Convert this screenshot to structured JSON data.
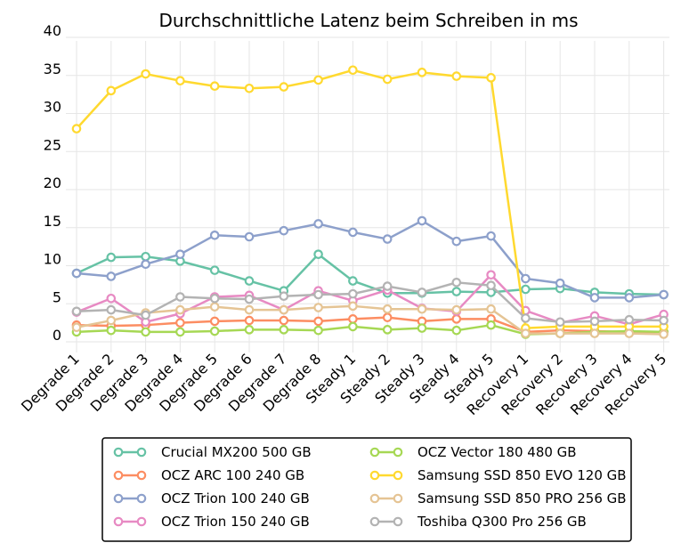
{
  "chart_data": {
    "type": "line",
    "title": "Durchschnittliche Latenz beim Schreiben in ms",
    "xlabel": "",
    "ylabel": "",
    "ylim": [
      0,
      40
    ],
    "yticks": [
      0,
      5,
      10,
      15,
      20,
      25,
      30,
      35,
      40
    ],
    "grid": true,
    "legend_position": "bottom",
    "categories": [
      "Degrade 1",
      "Degrade 2",
      "Degrade 3",
      "Degrade 4",
      "Degrade 5",
      "Degrade 6",
      "Degrade 7",
      "Degrade 8",
      "Steady 1",
      "Steady 2",
      "Steady 3",
      "Steady 4",
      "Steady 5",
      "Recovery 1",
      "Recovery 2",
      "Recovery 3",
      "Recovery 4",
      "Recovery 5"
    ],
    "series": [
      {
        "name": "Crucial MX200 500 GB",
        "color": "#66c2a5",
        "values": [
          9.0,
          11.1,
          11.2,
          10.6,
          9.4,
          8.0,
          6.7,
          11.5,
          8.0,
          6.4,
          6.4,
          6.6,
          6.5,
          6.9,
          7.0,
          6.5,
          6.3,
          6.2
        ]
      },
      {
        "name": "OCZ ARC 100 240 GB",
        "color": "#fc8d62",
        "values": [
          2.2,
          2.1,
          2.2,
          2.5,
          2.7,
          2.8,
          2.8,
          2.7,
          3.0,
          3.2,
          2.7,
          3.0,
          3.0,
          1.3,
          1.5,
          1.4,
          1.3,
          1.3
        ]
      },
      {
        "name": "OCZ Trion 100 240 GB",
        "color": "#8da0cb",
        "values": [
          9.0,
          8.6,
          10.2,
          11.5,
          14.0,
          13.8,
          14.6,
          15.5,
          14.4,
          13.5,
          15.9,
          13.2,
          13.9,
          8.3,
          7.7,
          5.8,
          5.8,
          6.2
        ]
      },
      {
        "name": "OCZ Trion 150 240 GB",
        "color": "#e78ac3",
        "values": [
          3.9,
          5.7,
          2.6,
          3.7,
          5.9,
          6.1,
          4.2,
          6.7,
          5.4,
          6.8,
          4.4,
          4.0,
          8.8,
          4.1,
          2.5,
          3.4,
          2.3,
          3.6
        ]
      },
      {
        "name": "OCZ Vector 180 480 GB",
        "color": "#a6d854",
        "values": [
          1.3,
          1.5,
          1.3,
          1.3,
          1.4,
          1.6,
          1.6,
          1.5,
          2.0,
          1.6,
          1.8,
          1.5,
          2.2,
          1.0,
          1.1,
          1.3,
          1.4,
          1.3
        ]
      },
      {
        "name": "Samsung SSD 850 EVO 120 GB",
        "color": "#ffd92f",
        "values": [
          28.0,
          33.0,
          35.2,
          34.3,
          33.6,
          33.3,
          33.5,
          34.4,
          35.7,
          34.5,
          35.4,
          34.9,
          34.7,
          1.8,
          2.0,
          2.0,
          2.0,
          2.0
        ]
      },
      {
        "name": "Samsung SSD 850 PRO 256 GB",
        "color": "#e5c494",
        "values": [
          1.9,
          2.8,
          3.8,
          4.2,
          4.6,
          4.2,
          4.2,
          4.5,
          4.7,
          4.3,
          4.3,
          4.2,
          4.3,
          1.1,
          1.1,
          1.1,
          1.1,
          1.0
        ]
      },
      {
        "name": "Toshiba Q300 Pro 256 GB",
        "color": "#b3b3b3",
        "values": [
          4.0,
          4.2,
          3.5,
          5.9,
          5.7,
          5.6,
          6.0,
          6.2,
          6.3,
          7.3,
          6.5,
          7.8,
          7.4,
          3.1,
          2.6,
          2.7,
          2.9,
          2.8
        ]
      }
    ]
  }
}
